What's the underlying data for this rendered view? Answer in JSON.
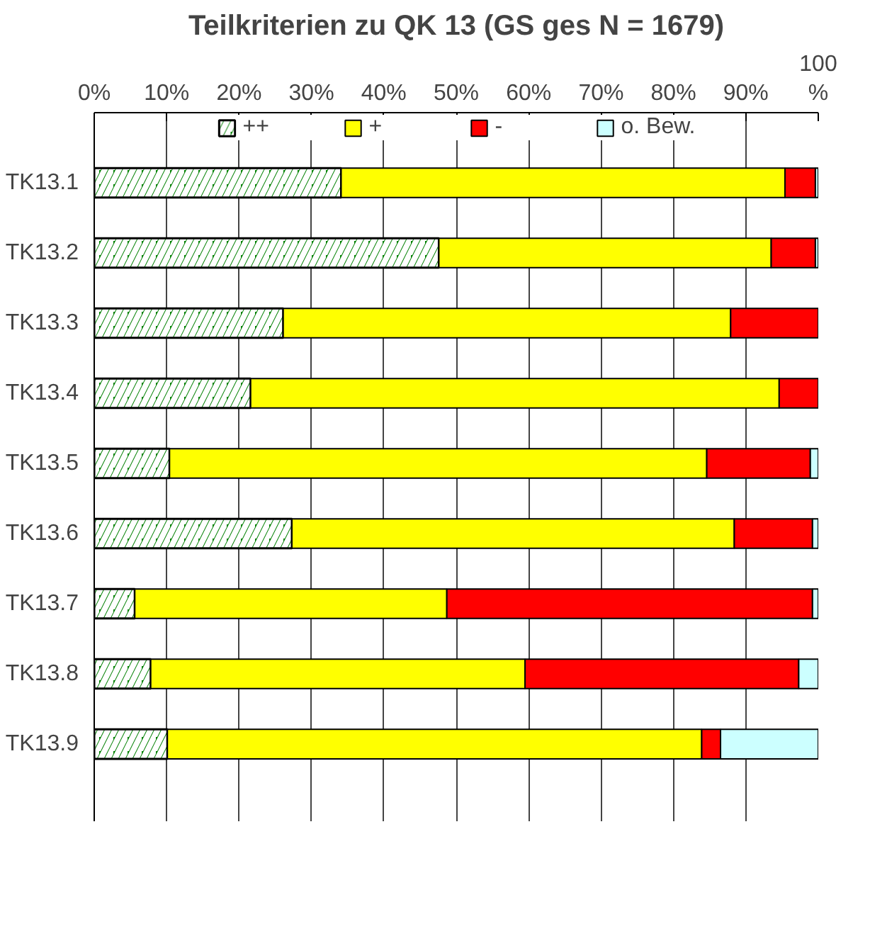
{
  "chart_data": {
    "type": "bar",
    "orientation": "horizontal",
    "stacked": true,
    "title": "Teilkriterien zu QK 13 (GS ges N = 1679)",
    "categories": [
      "TK13.1",
      "TK13.2",
      "TK13.3",
      "TK13.4",
      "TK13.5",
      "TK13.6",
      "TK13.7",
      "TK13.8",
      "TK13.9"
    ],
    "series": [
      {
        "name": "++",
        "color": "#008000",
        "values": [
          34.1,
          47.6,
          26.1,
          21.6,
          10.4,
          27.3,
          5.6,
          7.8,
          10.1
        ]
      },
      {
        "name": "+",
        "color": "#ffff00",
        "values": [
          61.3,
          45.9,
          61.8,
          73.0,
          74.2,
          61.1,
          43.1,
          51.7,
          73.8
        ]
      },
      {
        "name": "-",
        "color": "#ff0000",
        "values": [
          4.2,
          6.1,
          12.1,
          5.4,
          14.3,
          10.8,
          50.5,
          37.8,
          2.6
        ]
      },
      {
        "name": "o. Bew.",
        "color": "#ccffff",
        "values": [
          0.4,
          0.4,
          0,
          0,
          1.1,
          0.8,
          0.8,
          2.7,
          13.5
        ]
      }
    ],
    "xlim": [
      0,
      100
    ],
    "xticks": [
      {
        "value": 0,
        "label": "0%"
      },
      {
        "value": 10,
        "label": "10%"
      },
      {
        "value": 20,
        "label": "20%"
      },
      {
        "value": 30,
        "label": "30%"
      },
      {
        "value": 40,
        "label": "40%"
      },
      {
        "value": 50,
        "label": "50%"
      },
      {
        "value": 60,
        "label": "60%"
      },
      {
        "value": 70,
        "label": "70%"
      },
      {
        "value": 80,
        "label": "80%"
      },
      {
        "value": 90,
        "label": "90%"
      },
      {
        "value": 100,
        "label": "100 %"
      }
    ],
    "grid": "x",
    "legend": "top"
  }
}
